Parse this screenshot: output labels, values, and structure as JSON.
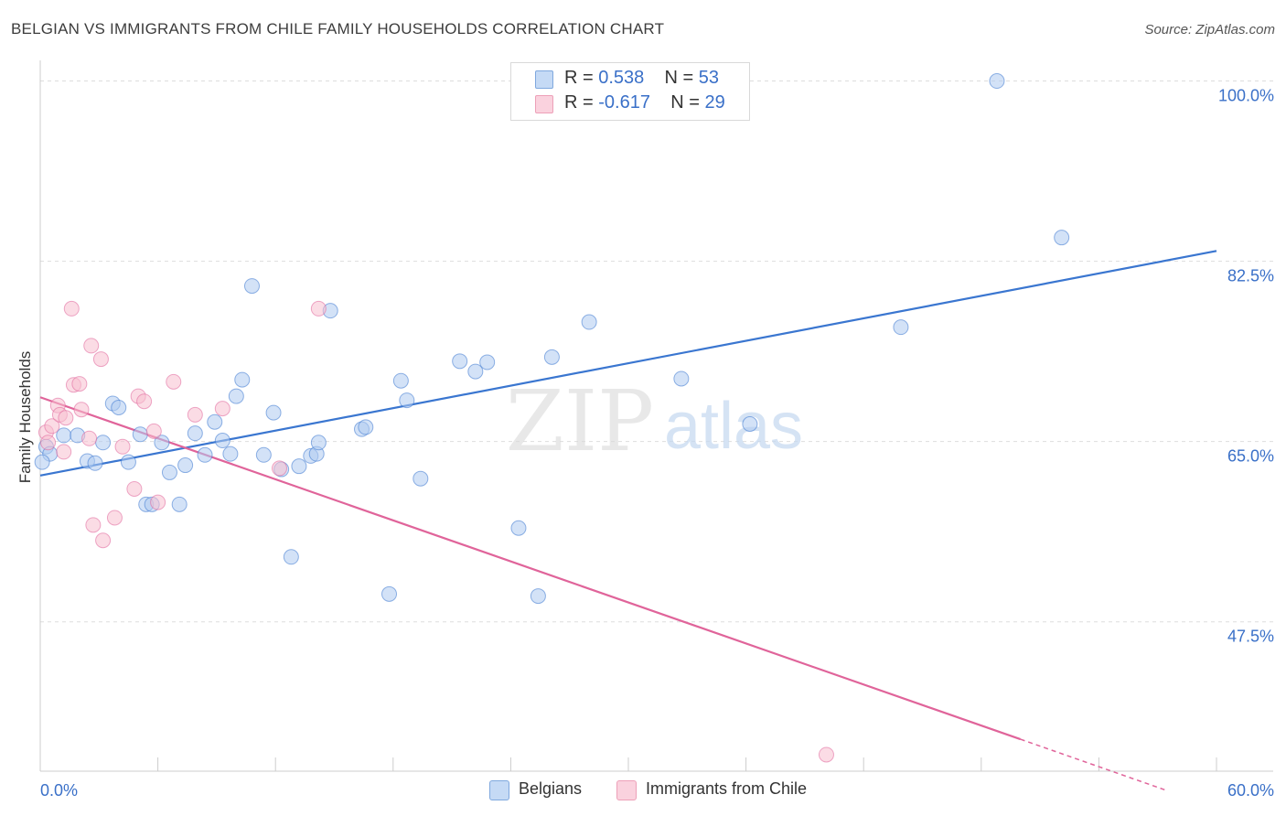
{
  "header": {
    "title": "BELGIAN VS IMMIGRANTS FROM CHILE FAMILY HOUSEHOLDS CORRELATION CHART",
    "source": "Source: ZipAtlas.com"
  },
  "watermark": {
    "zip": "ZIP",
    "atlas": "atlas"
  },
  "stats_legend": [
    {
      "r_label": "R =",
      "r_value": "0.538",
      "n_label": "N =",
      "n_value": "53",
      "color": "#aecbf0"
    },
    {
      "r_label": "R =",
      "r_value": "-0.617",
      "n_label": "N =",
      "n_value": "29",
      "color": "#f7bfd0"
    }
  ],
  "bottom_legend": [
    {
      "label": "Belgians",
      "color": "#aecbf0"
    },
    {
      "label": "Immigrants from Chile",
      "color": "#f7bfd0"
    }
  ],
  "chart_data": {
    "type": "scatter",
    "title": "BELGIAN VS IMMIGRANTS FROM CHILE FAMILY HOUSEHOLDS CORRELATION CHART",
    "xlabel": "",
    "ylabel": "Family Households",
    "xlim": [
      0,
      60
    ],
    "ylim": [
      33,
      102
    ],
    "x_tick_labels": [
      {
        "value": 0,
        "label": "0.0%"
      },
      {
        "value": 60,
        "label": "60.0%"
      }
    ],
    "y_tick_labels": [
      {
        "value": 47.5,
        "label": "47.5%"
      },
      {
        "value": 65.0,
        "label": "65.0%"
      },
      {
        "value": 82.5,
        "label": "82.5%"
      },
      {
        "value": 100.0,
        "label": "100.0%"
      }
    ],
    "grid": true,
    "legend_position": "top-center",
    "series": [
      {
        "name": "Belgians",
        "color": "#3a76d0",
        "fill": "#aecbf0",
        "trend": {
          "x": [
            0,
            60
          ],
          "y": [
            61.7,
            83.5
          ]
        },
        "points": [
          [
            0.3,
            64.5
          ],
          [
            0.5,
            63.8
          ],
          [
            1.2,
            65.6
          ],
          [
            1.9,
            65.6
          ],
          [
            2.4,
            63.1
          ],
          [
            2.8,
            62.9
          ],
          [
            3.2,
            64.9
          ],
          [
            3.7,
            68.7
          ],
          [
            4.0,
            68.3
          ],
          [
            4.5,
            63.0
          ],
          [
            5.1,
            65.7
          ],
          [
            5.4,
            58.9
          ],
          [
            5.7,
            58.9
          ],
          [
            6.2,
            64.9
          ],
          [
            6.6,
            62.0
          ],
          [
            7.1,
            58.9
          ],
          [
            7.4,
            62.7
          ],
          [
            7.9,
            65.8
          ],
          [
            8.4,
            63.7
          ],
          [
            8.9,
            66.9
          ],
          [
            9.3,
            65.1
          ],
          [
            9.7,
            63.8
          ],
          [
            10.0,
            69.4
          ],
          [
            10.3,
            71.0
          ],
          [
            10.8,
            80.1
          ],
          [
            11.4,
            63.7
          ],
          [
            11.9,
            67.8
          ],
          [
            12.3,
            62.3
          ],
          [
            12.8,
            53.8
          ],
          [
            13.2,
            62.6
          ],
          [
            13.8,
            63.6
          ],
          [
            14.1,
            63.8
          ],
          [
            14.2,
            64.9
          ],
          [
            14.8,
            77.7
          ],
          [
            16.4,
            66.2
          ],
          [
            16.6,
            66.4
          ],
          [
            18.4,
            70.9
          ],
          [
            18.7,
            69.0
          ],
          [
            17.8,
            50.2
          ],
          [
            19.4,
            61.4
          ],
          [
            21.4,
            72.8
          ],
          [
            22.2,
            71.8
          ],
          [
            22.8,
            72.7
          ],
          [
            24.4,
            56.6
          ],
          [
            25.4,
            50.0
          ],
          [
            26.1,
            73.2
          ],
          [
            28.0,
            76.6
          ],
          [
            32.7,
            71.1
          ],
          [
            36.2,
            66.7
          ],
          [
            43.9,
            76.1
          ],
          [
            48.8,
            100.0
          ],
          [
            52.1,
            84.8
          ],
          [
            0.1,
            63.0
          ]
        ]
      },
      {
        "name": "Immigrants from Chile",
        "color": "#e0649a",
        "fill": "#f7bfd0",
        "trend": {
          "x": [
            0,
            50
          ],
          "y": [
            69.3,
            36.1
          ]
        },
        "trend_dashed": {
          "x": [
            50,
            57.5
          ],
          "y": [
            36.1,
            31.1
          ]
        },
        "points": [
          [
            0.3,
            65.9
          ],
          [
            0.6,
            66.5
          ],
          [
            0.9,
            68.5
          ],
          [
            1.0,
            67.6
          ],
          [
            1.2,
            64.0
          ],
          [
            1.3,
            67.3
          ],
          [
            1.6,
            77.9
          ],
          [
            1.7,
            70.5
          ],
          [
            2.0,
            70.6
          ],
          [
            2.1,
            68.1
          ],
          [
            2.5,
            65.3
          ],
          [
            2.6,
            74.3
          ],
          [
            2.7,
            56.9
          ],
          [
            3.1,
            73.0
          ],
          [
            3.2,
            55.4
          ],
          [
            3.8,
            57.6
          ],
          [
            4.2,
            64.5
          ],
          [
            4.8,
            60.4
          ],
          [
            5.0,
            69.4
          ],
          [
            5.3,
            68.9
          ],
          [
            5.8,
            66.0
          ],
          [
            6.0,
            59.1
          ],
          [
            6.8,
            70.8
          ],
          [
            7.9,
            67.6
          ],
          [
            9.3,
            68.2
          ],
          [
            12.2,
            62.4
          ],
          [
            14.2,
            77.9
          ],
          [
            40.1,
            34.6
          ],
          [
            0.4,
            64.9
          ]
        ]
      }
    ]
  }
}
